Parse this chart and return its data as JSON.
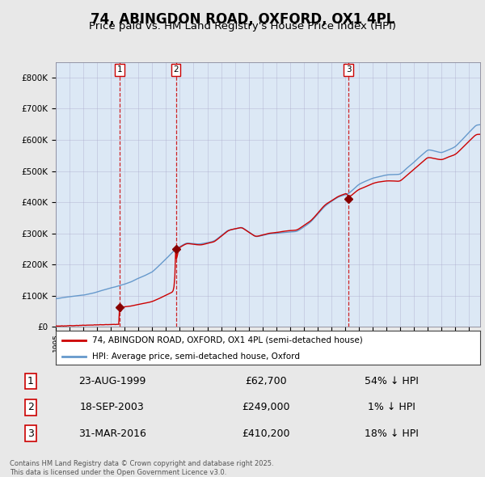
{
  "title": "74, ABINGDON ROAD, OXFORD, OX1 4PL",
  "subtitle": "Price paid vs. HM Land Registry's House Price Index (HPI)",
  "title_fontsize": 12,
  "subtitle_fontsize": 9.5,
  "background_color": "#e8e8e8",
  "plot_bg_color": "#dce8f5",
  "plot_bg_between": "#dce8f5",
  "grid_color": "#aaaacc",
  "hpi_color": "#6699cc",
  "price_color": "#cc0000",
  "vline_color": "#cc0000",
  "marker_color": "#880000",
  "ylim": [
    0,
    850000
  ],
  "ytick_labels": [
    "£0",
    "£100K",
    "£200K",
    "£300K",
    "£400K",
    "£500K",
    "£600K",
    "£700K",
    "£800K"
  ],
  "ytick_values": [
    0,
    100000,
    200000,
    300000,
    400000,
    500000,
    600000,
    700000,
    800000
  ],
  "transactions": [
    {
      "label": "1",
      "date_num": 1999.646,
      "price": 62700,
      "date_str": "23-AUG-1999"
    },
    {
      "label": "2",
      "date_num": 2003.713,
      "price": 249000,
      "date_str": "18-SEP-2003"
    },
    {
      "label": "3",
      "date_num": 2016.247,
      "price": 410200,
      "date_str": "31-MAR-2016"
    }
  ],
  "legend_entries": [
    {
      "label": "74, ABINGDON ROAD, OXFORD, OX1 4PL (semi-detached house)",
      "color": "#cc0000"
    },
    {
      "label": "HPI: Average price, semi-detached house, Oxford",
      "color": "#6699cc"
    }
  ],
  "table_rows": [
    {
      "num": "1",
      "date": "23-AUG-1999",
      "price": "£62,700",
      "hpi": "54% ↓ HPI"
    },
    {
      "num": "2",
      "date": "18-SEP-2003",
      "price": "£249,000",
      "hpi": "1% ↓ HPI"
    },
    {
      "num": "3",
      "date": "31-MAR-2016",
      "price": "£410,200",
      "hpi": "18% ↓ HPI"
    }
  ],
  "footnote": "Contains HM Land Registry data © Crown copyright and database right 2025.\nThis data is licensed under the Open Government Licence v3.0.",
  "xmin": 1995,
  "xmax": 2025.8
}
